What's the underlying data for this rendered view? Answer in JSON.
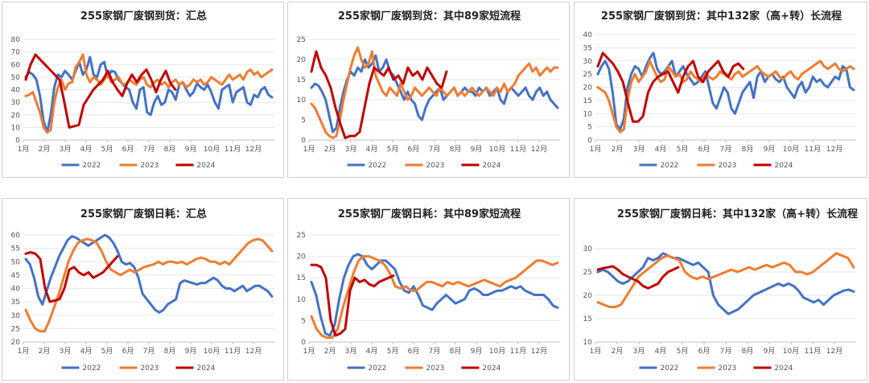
{
  "colors": {
    "s2022": "#4472C4",
    "s2023": "#ED7D31",
    "s2024": "#C00000",
    "grid": "#e6e6e6",
    "axis": "#bfbfbf"
  },
  "chart_data": [
    {
      "type": "line",
      "title": "255家钢厂废钢到货：汇总",
      "x_tick_labels": [
        "1月",
        "2月",
        "3月",
        "4月",
        "5月",
        "6月",
        "7月",
        "8月",
        "9月",
        "10月",
        "11月",
        "12月"
      ],
      "y_ticks": [
        "0",
        "10",
        "20",
        "30",
        "40",
        "50",
        "60",
        "70",
        "80"
      ],
      "ylim": [
        0,
        80
      ],
      "series": [
        {
          "name": "2022",
          "values": [
            50,
            54,
            52,
            48,
            35,
            15,
            6,
            20,
            42,
            52,
            50,
            55,
            52,
            48,
            55,
            62,
            52,
            56,
            66,
            52,
            50,
            60,
            62,
            50,
            55,
            54,
            48,
            45,
            42,
            40,
            30,
            25,
            40,
            42,
            22,
            20,
            30,
            35,
            28,
            30,
            40,
            38,
            32,
            44,
            46,
            40,
            35,
            38,
            45,
            42,
            40,
            44,
            38,
            30,
            25,
            40,
            42,
            44,
            30,
            38,
            40,
            42,
            30,
            28,
            36,
            34,
            40,
            42,
            36,
            34
          ]
        },
        {
          "name": "2023",
          "values": [
            35,
            36,
            38,
            30,
            22,
            10,
            6,
            8,
            30,
            42,
            48,
            40,
            45,
            46,
            58,
            62,
            68,
            52,
            46,
            50,
            48,
            44,
            48,
            52,
            46,
            48,
            50,
            45,
            44,
            48,
            46,
            44,
            48,
            50,
            44,
            42,
            46,
            48,
            44,
            46,
            42,
            46,
            48,
            44,
            46,
            42,
            44,
            48,
            46,
            48,
            44,
            46,
            50,
            48,
            46,
            44,
            48,
            52,
            48,
            50,
            52,
            48,
            54,
            56,
            52,
            54,
            50,
            52,
            54,
            56
          ]
        },
        {
          "name": "2024",
          "values": [
            48,
            60,
            68,
            64,
            60,
            56,
            52,
            48,
            30,
            10,
            11,
            12,
            28,
            34,
            40,
            44,
            48,
            55,
            46,
            40,
            35,
            45,
            52,
            46,
            52,
            56,
            48,
            38,
            48,
            55,
            45,
            40
          ]
        }
      ],
      "legend": [
        "2022",
        "2023",
        "2024"
      ]
    },
    {
      "type": "line",
      "title": "255家钢厂废钢到货：其中89家短流程",
      "x_tick_labels": [
        "1月",
        "2月",
        "3月",
        "4月",
        "5月",
        "6月",
        "7月",
        "8月",
        "9月",
        "10月",
        "11月",
        "12月"
      ],
      "y_ticks": [
        "0",
        "5",
        "10",
        "15",
        "20",
        "25"
      ],
      "ylim": [
        0,
        25
      ],
      "series": [
        {
          "name": "2022",
          "values": [
            13,
            14,
            13.5,
            12,
            10,
            6,
            2,
            3,
            8,
            12,
            15,
            17,
            16,
            18,
            17,
            20,
            18,
            19,
            21,
            17,
            18,
            20,
            17,
            16,
            14,
            12,
            10,
            12,
            10,
            9,
            6,
            5,
            8,
            10,
            11,
            12,
            13,
            10,
            11,
            12,
            13,
            11,
            12,
            13,
            12,
            12,
            11,
            13,
            12,
            13,
            11,
            12,
            13,
            10,
            9,
            12,
            13,
            12,
            11,
            12,
            13,
            11,
            10,
            12,
            13,
            11,
            12,
            10,
            9,
            8
          ]
        },
        {
          "name": "2023",
          "values": [
            9,
            8,
            6,
            4,
            2,
            1,
            0.5,
            1,
            5,
            10,
            14,
            18,
            21,
            23,
            20,
            18,
            19,
            22,
            16,
            14,
            12,
            11,
            13,
            12,
            11,
            14,
            12,
            10,
            11,
            13,
            12,
            11,
            12,
            13,
            12,
            11,
            13,
            12,
            11,
            12,
            13,
            11,
            12,
            11,
            12,
            13,
            12,
            11,
            12,
            13,
            12,
            11,
            13,
            12,
            14,
            12,
            13,
            14,
            16,
            17,
            18,
            19,
            17,
            18,
            16,
            17,
            18,
            17,
            18,
            18
          ]
        },
        {
          "name": "2024",
          "values": [
            17,
            22,
            18,
            16,
            13,
            8,
            4,
            0.5,
            1,
            1,
            2,
            8,
            14,
            18,
            17,
            16,
            18,
            15,
            16,
            14,
            18,
            16,
            17,
            15,
            18,
            16,
            14,
            13,
            17
          ]
        }
      ],
      "legend": [
        "2022",
        "2023",
        "2024"
      ]
    },
    {
      "type": "line",
      "title": "255家钢厂废钢到货：其中132家（高+转）长流程",
      "x_tick_labels": [
        "1月",
        "2月",
        "3月",
        "4月",
        "5月",
        "6月",
        "7月",
        "8月",
        "9月",
        "10月",
        "11月",
        "12月"
      ],
      "y_ticks": [
        "0",
        "5",
        "10",
        "15",
        "20",
        "25",
        "30",
        "35",
        "40"
      ],
      "ylim": [
        0,
        40
      ],
      "series": [
        {
          "name": "2022",
          "values": [
            25,
            28,
            30,
            27,
            18,
            6,
            4,
            8,
            20,
            25,
            28,
            27,
            24,
            28,
            31,
            33,
            27,
            25,
            26,
            28,
            30,
            24,
            26,
            28,
            25,
            23,
            21,
            22,
            24,
            26,
            20,
            14,
            12,
            16,
            20,
            18,
            12,
            10,
            14,
            18,
            20,
            22,
            16,
            24,
            26,
            22,
            24,
            25,
            23,
            22,
            24,
            20,
            18,
            16,
            20,
            22,
            18,
            20,
            24,
            22,
            23,
            21,
            20,
            22,
            24,
            23,
            28,
            27,
            20,
            19
          ]
        },
        {
          "name": "2023",
          "values": [
            20,
            19,
            18,
            15,
            10,
            5,
            3,
            4,
            15,
            22,
            25,
            22,
            24,
            26,
            30,
            27,
            24,
            22,
            23,
            28,
            26,
            24,
            25,
            22,
            23,
            26,
            24,
            23,
            22,
            25,
            24,
            23,
            24,
            26,
            25,
            24,
            23,
            25,
            26,
            24,
            25,
            26,
            27,
            28,
            26,
            25,
            24,
            25,
            26,
            24,
            23,
            25,
            26,
            24,
            23,
            25,
            26,
            27,
            28,
            29,
            30,
            28,
            27,
            28,
            29,
            27,
            26,
            27,
            28,
            27
          ]
        },
        {
          "name": "2024",
          "values": [
            28,
            33,
            31,
            29,
            26,
            22,
            14,
            7,
            7,
            9,
            18,
            22,
            24,
            25,
            26,
            22,
            18,
            24,
            28,
            30,
            24,
            22,
            26,
            28,
            30,
            26,
            24,
            28,
            29,
            27
          ]
        }
      ],
      "legend": [
        "2022",
        "2023",
        "2024"
      ]
    },
    {
      "type": "line",
      "title": "255家钢厂废钢日耗：汇总",
      "x_tick_labels": [
        "1月",
        "2月",
        "3月",
        "4月",
        "5月",
        "6月",
        "7月",
        "8月",
        "9月",
        "10月",
        "11月",
        "12月"
      ],
      "y_ticks": [
        "20",
        "25",
        "30",
        "35",
        "40",
        "45",
        "50",
        "55",
        "60"
      ],
      "ylim": [
        20,
        60
      ],
      "series": [
        {
          "name": "2022",
          "values": [
            51,
            49,
            44,
            37,
            34,
            39,
            44,
            48,
            52,
            55,
            58,
            59.5,
            59,
            58,
            57,
            56,
            57,
            58,
            59,
            60,
            59,
            57,
            54,
            50,
            49,
            49.5,
            48,
            44,
            38,
            36,
            34,
            32,
            31,
            32,
            34,
            35,
            36,
            42,
            43,
            42.5,
            42,
            41.5,
            42,
            42,
            43,
            44,
            43,
            41,
            40,
            40,
            39,
            40,
            41,
            39,
            40,
            41,
            41,
            40,
            39,
            37
          ]
        },
        {
          "name": "2023",
          "values": [
            32,
            28,
            25,
            24,
            24,
            28,
            33,
            38,
            44,
            50,
            54,
            57,
            58,
            58.5,
            58,
            57,
            54,
            50,
            47,
            46,
            45,
            46,
            47,
            46,
            47,
            48,
            48.5,
            49,
            50,
            49,
            50,
            50,
            49.5,
            50,
            49,
            50,
            51,
            51.5,
            51,
            50,
            50,
            49,
            50,
            49,
            51,
            53,
            55,
            57,
            58,
            58.5,
            58,
            56,
            54
          ]
        },
        {
          "name": "2024",
          "values": [
            53,
            53.5,
            53,
            51,
            40,
            35,
            35.5,
            36,
            40,
            47,
            48,
            46,
            45,
            46,
            44,
            45,
            46,
            48,
            50,
            52
          ]
        }
      ],
      "legend": [
        "2022",
        "2023",
        "2024"
      ]
    },
    {
      "type": "line",
      "title": "255家钢厂废钢日耗：其中89家短流程",
      "x_tick_labels": [
        "1月",
        "2月",
        "3月",
        "4月",
        "5月",
        "6月",
        "7月",
        "8月",
        "9月",
        "10月",
        "11月",
        "12月"
      ],
      "y_ticks": [
        "0",
        "5",
        "10",
        "15",
        "20",
        "25"
      ],
      "ylim": [
        0,
        25
      ],
      "series": [
        {
          "name": "2022",
          "values": [
            14,
            11,
            6,
            2,
            1.5,
            4,
            10,
            15,
            18,
            20,
            20.5,
            20,
            18,
            17,
            18,
            19,
            19,
            18,
            17,
            14,
            12,
            11.5,
            13,
            11,
            8.5,
            8,
            7.5,
            9,
            10,
            11,
            10,
            9,
            9.5,
            10,
            12,
            12.5,
            12,
            11,
            11,
            11.5,
            12,
            12,
            12.5,
            13,
            12.5,
            13,
            12,
            11.5,
            11,
            11,
            11,
            10,
            8.5,
            8
          ]
        },
        {
          "name": "2023",
          "values": [
            6,
            3,
            1.5,
            1,
            1,
            3,
            8,
            12,
            16,
            19,
            20,
            20,
            19.5,
            19,
            18,
            16,
            13,
            12.5,
            13,
            12,
            12,
            13,
            14,
            14,
            13.5,
            13,
            14,
            13.5,
            14,
            13.5,
            13,
            13.5,
            14,
            14.5,
            14,
            13.5,
            13,
            14,
            14.5,
            15,
            16,
            17,
            18,
            19,
            19,
            18.5,
            18,
            18.5
          ]
        },
        {
          "name": "2024",
          "values": [
            18,
            18,
            17.5,
            15,
            5,
            1.5,
            2,
            3,
            12,
            15,
            14,
            14.5,
            13.5,
            13,
            14,
            14.5,
            15,
            15.5
          ]
        }
      ],
      "legend": [
        "2022",
        "2023",
        "2024"
      ]
    },
    {
      "type": "line",
      "title": "255家钢厂废钢日耗：其中132家（高+转）长流程",
      "x_tick_labels": [
        "1月",
        "2月",
        "3月",
        "4月",
        "5月",
        "6月",
        "7月",
        "8月",
        "9月",
        "10月",
        "11月",
        "12月"
      ],
      "y_ticks": [
        "10",
        "15",
        "20",
        "25",
        "30"
      ],
      "ylim": [
        10,
        30
      ],
      "series": [
        {
          "name": "2022",
          "values": [
            25,
            25.5,
            25,
            24,
            23,
            22.5,
            23,
            24,
            25,
            26,
            28,
            27.5,
            28,
            29,
            28.5,
            28,
            28,
            27.5,
            27,
            26.5,
            27,
            26,
            25,
            20,
            18,
            17,
            16,
            16.5,
            17,
            18,
            19,
            20,
            20.5,
            21,
            21.5,
            22,
            22.5,
            22,
            22.5,
            22,
            21,
            19.5,
            19,
            18.5,
            19,
            18,
            19,
            20,
            20.5,
            21,
            21.2,
            20.8
          ]
        },
        {
          "name": "2023",
          "values": [
            18.5,
            18,
            17.5,
            17.5,
            18,
            20,
            22,
            24,
            25,
            26,
            27,
            28,
            28.5,
            28,
            27.5,
            25,
            24,
            23.5,
            24,
            23.5,
            24,
            24.5,
            25,
            25.5,
            25,
            25.5,
            26,
            25.5,
            26,
            26.5,
            26,
            26.5,
            27,
            26.5,
            25,
            25,
            24.5,
            25,
            26,
            27,
            28,
            29,
            28.5,
            28,
            26
          ]
        },
        {
          "name": "2024",
          "values": [
            25.5,
            25.8,
            26,
            26.2,
            25.5,
            24.5,
            24,
            23.5,
            23,
            22,
            21.5,
            22,
            22.5,
            24,
            25,
            25.5,
            26
          ]
        }
      ],
      "legend": [
        "2022",
        "2023",
        "2024"
      ]
    }
  ]
}
